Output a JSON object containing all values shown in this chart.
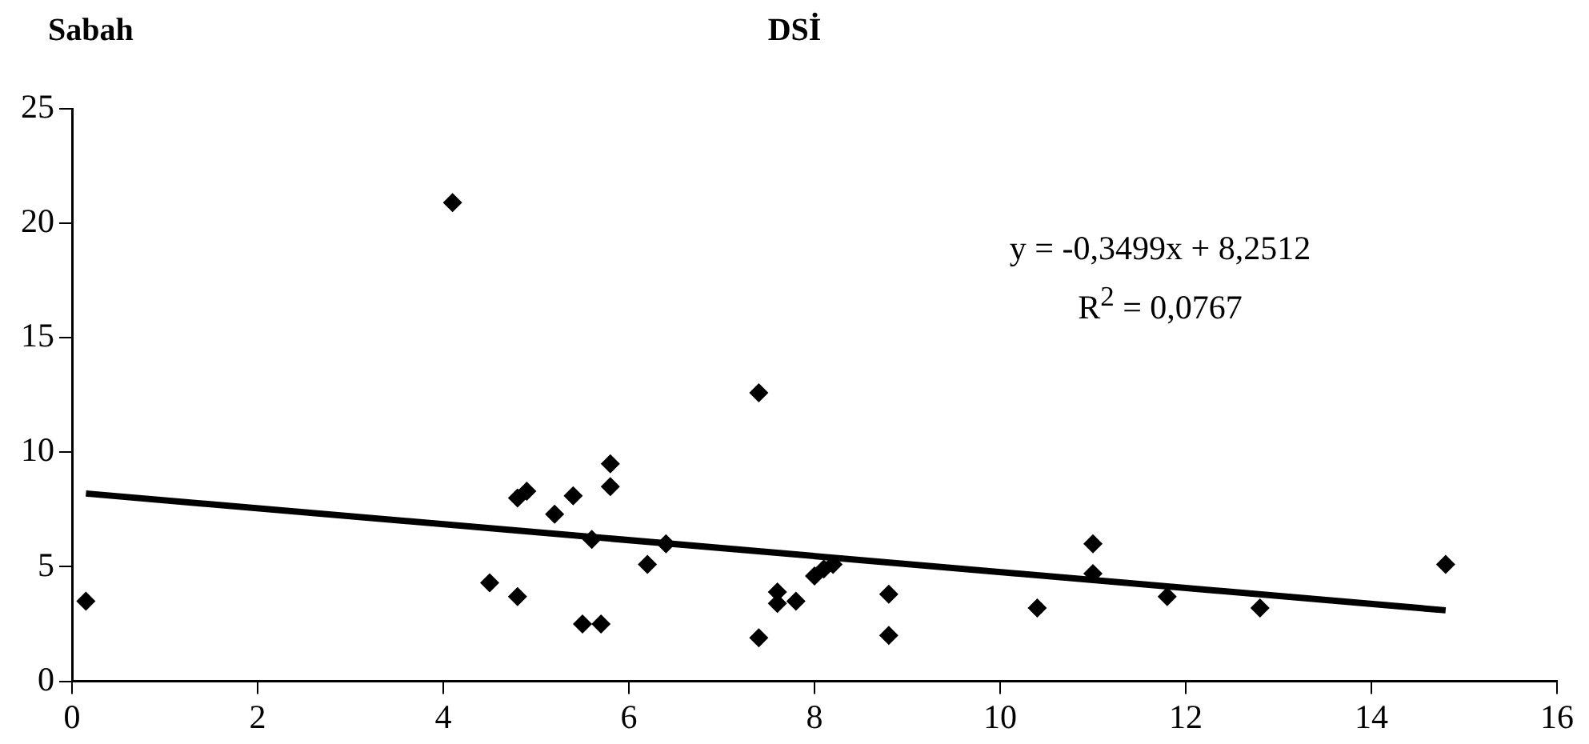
{
  "chart_data": {
    "type": "scatter",
    "title": "DSİ",
    "ylabel": "Sabah",
    "annotations": [
      "y = -0,3499x + 8,2512",
      "R$^{2}$ = 0,0767"
    ],
    "series": [
      {
        "type": "scatter",
        "color": "#000000",
        "marker": "diamond",
        "x": [
          0.15,
          4.1,
          4.5,
          4.8,
          4.9,
          4.8,
          5.2,
          5.4,
          5.5,
          5.6,
          5.7,
          5.8,
          5.8,
          6.2,
          6.4,
          7.4,
          7.4,
          7.6,
          7.6,
          7.8,
          8.0,
          8.1,
          8.2,
          8.8,
          8.8,
          10.4,
          11.0,
          11.0,
          11.8,
          12.8,
          14.8
        ],
        "values": [
          3.5,
          20.9,
          4.3,
          8.0,
          8.3,
          3.7,
          7.3,
          8.1,
          2.5,
          6.2,
          2.5,
          9.5,
          8.5,
          5.1,
          6.0,
          12.6,
          1.9,
          3.9,
          3.4,
          3.5,
          4.6,
          4.9,
          5.1,
          3.8,
          2.0,
          3.2,
          6.0,
          4.7,
          3.7,
          3.2,
          5.1
        ]
      },
      {
        "type": "line",
        "color": "#000000",
        "marker": "none",
        "x": [
          0.15,
          14.8
        ],
        "values": [
          8.2,
          3.1
        ]
      }
    ],
    "xlim": [
      0,
      16
    ],
    "xticks": [
      0,
      2,
      4,
      6,
      8,
      10,
      12,
      14,
      16
    ],
    "ylim": [
      0,
      25
    ],
    "yticks": [
      0,
      5,
      10,
      15,
      20,
      25
    ],
    "grid": false,
    "legend": false
  }
}
